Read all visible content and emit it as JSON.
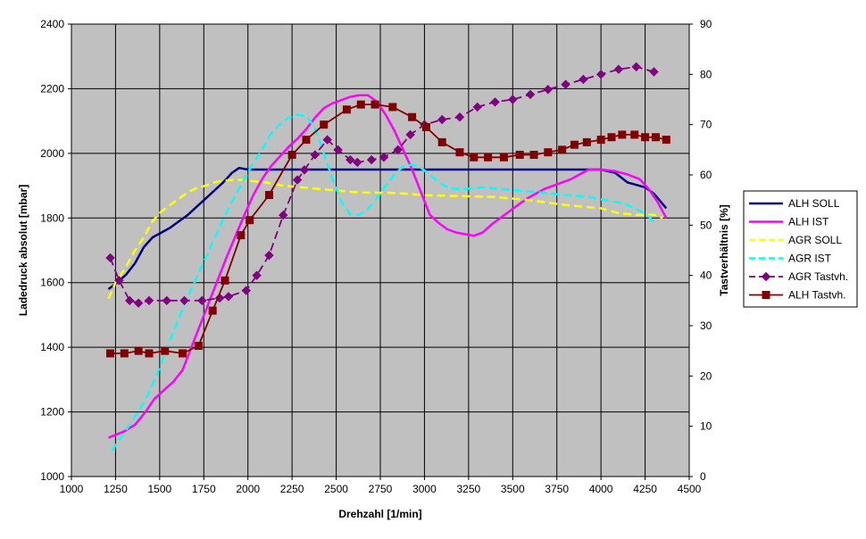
{
  "chart_data": {
    "type": "line",
    "xlabel": "Drehzahl [1/min]",
    "ylabel": "Ladedruck absolut [mbar]",
    "y2label": "Tastverhältnis [%]",
    "xlim": [
      1000,
      4500
    ],
    "ylim": [
      1000,
      2400
    ],
    "y2lim": [
      0,
      90
    ],
    "xticks": [
      "1000",
      "1250",
      "1500",
      "1750",
      "2000",
      "2250",
      "2500",
      "2750",
      "3000",
      "3250",
      "3500",
      "3750",
      "4000",
      "4250",
      "4500"
    ],
    "yticks": [
      "1000",
      "1200",
      "1400",
      "1600",
      "1800",
      "2000",
      "2200",
      "2400"
    ],
    "y2ticks": [
      "0",
      "10",
      "20",
      "30",
      "40",
      "50",
      "60",
      "70",
      "80",
      "90"
    ],
    "grid": true,
    "legend_position": "right",
    "colors": {
      "plot_background": "#c0c0c0",
      "grid": "#000000"
    },
    "series": [
      {
        "name": "ALH SOLL",
        "axis": "left",
        "color": "#000080",
        "dash": "solid",
        "marker": "none",
        "points": [
          [
            1210,
            1580
          ],
          [
            1260,
            1600
          ],
          [
            1310,
            1625
          ],
          [
            1360,
            1660
          ],
          [
            1410,
            1710
          ],
          [
            1460,
            1740
          ],
          [
            1510,
            1755
          ],
          [
            1560,
            1770
          ],
          [
            1610,
            1790
          ],
          [
            1660,
            1810
          ],
          [
            1710,
            1835
          ],
          [
            1760,
            1860
          ],
          [
            1810,
            1885
          ],
          [
            1860,
            1910
          ],
          [
            1910,
            1940
          ],
          [
            1950,
            1955
          ],
          [
            2000,
            1950
          ],
          [
            2100,
            1950
          ],
          [
            2500,
            1950
          ],
          [
            3000,
            1950
          ],
          [
            3500,
            1950
          ],
          [
            4000,
            1950
          ],
          [
            4080,
            1940
          ],
          [
            4150,
            1910
          ],
          [
            4250,
            1895
          ],
          [
            4300,
            1875
          ],
          [
            4370,
            1830
          ]
        ]
      },
      {
        "name": "ALH IST",
        "axis": "left",
        "color": "#ff00ff",
        "dash": "solid",
        "marker": "none",
        "points": [
          [
            1210,
            1120
          ],
          [
            1300,
            1140
          ],
          [
            1360,
            1160
          ],
          [
            1420,
            1200
          ],
          [
            1470,
            1240
          ],
          [
            1530,
            1270
          ],
          [
            1580,
            1295
          ],
          [
            1630,
            1330
          ],
          [
            1680,
            1400
          ],
          [
            1730,
            1470
          ],
          [
            1780,
            1540
          ],
          [
            1830,
            1610
          ],
          [
            1880,
            1680
          ],
          [
            1930,
            1745
          ],
          [
            1980,
            1810
          ],
          [
            2030,
            1870
          ],
          [
            2080,
            1920
          ],
          [
            2130,
            1960
          ],
          [
            2180,
            1990
          ],
          [
            2230,
            2020
          ],
          [
            2280,
            2045
          ],
          [
            2330,
            2075
          ],
          [
            2380,
            2110
          ],
          [
            2430,
            2140
          ],
          [
            2480,
            2155
          ],
          [
            2530,
            2165
          ],
          [
            2580,
            2175
          ],
          [
            2630,
            2180
          ],
          [
            2680,
            2180
          ],
          [
            2730,
            2160
          ],
          [
            2780,
            2120
          ],
          [
            2830,
            2070
          ],
          [
            2880,
            2010
          ],
          [
            2930,
            1950
          ],
          [
            2980,
            1880
          ],
          [
            3030,
            1810
          ],
          [
            3080,
            1785
          ],
          [
            3130,
            1765
          ],
          [
            3180,
            1755
          ],
          [
            3230,
            1750
          ],
          [
            3280,
            1745
          ],
          [
            3330,
            1755
          ],
          [
            3380,
            1780
          ],
          [
            3430,
            1800
          ],
          [
            3480,
            1820
          ],
          [
            3530,
            1840
          ],
          [
            3580,
            1860
          ],
          [
            3630,
            1875
          ],
          [
            3680,
            1890
          ],
          [
            3730,
            1900
          ],
          [
            3780,
            1910
          ],
          [
            3830,
            1920
          ],
          [
            3880,
            1935
          ],
          [
            3930,
            1950
          ],
          [
            4000,
            1950
          ],
          [
            4080,
            1945
          ],
          [
            4150,
            1935
          ],
          [
            4220,
            1920
          ],
          [
            4270,
            1890
          ],
          [
            4320,
            1850
          ],
          [
            4370,
            1800
          ]
        ]
      },
      {
        "name": "AGR SOLL",
        "axis": "left",
        "color": "#ffff00",
        "dash": "dashed",
        "marker": "none",
        "points": [
          [
            1210,
            1550
          ],
          [
            1250,
            1600
          ],
          [
            1310,
            1650
          ],
          [
            1360,
            1700
          ],
          [
            1410,
            1740
          ],
          [
            1460,
            1790
          ],
          [
            1510,
            1820
          ],
          [
            1560,
            1840
          ],
          [
            1610,
            1860
          ],
          [
            1660,
            1880
          ],
          [
            1710,
            1893
          ],
          [
            1760,
            1900
          ],
          [
            1810,
            1910
          ],
          [
            1860,
            1915
          ],
          [
            1910,
            1918
          ],
          [
            1960,
            1918
          ],
          [
            2010,
            1915
          ],
          [
            2100,
            1910
          ],
          [
            2200,
            1900
          ],
          [
            2300,
            1895
          ],
          [
            2400,
            1890
          ],
          [
            2500,
            1885
          ],
          [
            2600,
            1880
          ],
          [
            2700,
            1878
          ],
          [
            2800,
            1878
          ],
          [
            2900,
            1875
          ],
          [
            3000,
            1870
          ],
          [
            3200,
            1868
          ],
          [
            3400,
            1865
          ],
          [
            3600,
            1855
          ],
          [
            3800,
            1840
          ],
          [
            4000,
            1830
          ],
          [
            4100,
            1815
          ],
          [
            4200,
            1810
          ],
          [
            4300,
            1810
          ],
          [
            4350,
            1800
          ]
        ]
      },
      {
        "name": "AGR IST",
        "axis": "left",
        "color": "#00ffff",
        "dash": "dashed",
        "marker": "none",
        "points": [
          [
            1230,
            1080
          ],
          [
            1280,
            1120
          ],
          [
            1330,
            1160
          ],
          [
            1380,
            1200
          ],
          [
            1430,
            1250
          ],
          [
            1480,
            1310
          ],
          [
            1530,
            1380
          ],
          [
            1580,
            1450
          ],
          [
            1630,
            1520
          ],
          [
            1680,
            1580
          ],
          [
            1730,
            1640
          ],
          [
            1780,
            1700
          ],
          [
            1830,
            1760
          ],
          [
            1880,
            1820
          ],
          [
            1930,
            1870
          ],
          [
            1980,
            1920
          ],
          [
            2030,
            1970
          ],
          [
            2080,
            2010
          ],
          [
            2130,
            2060
          ],
          [
            2180,
            2090
          ],
          [
            2230,
            2110
          ],
          [
            2280,
            2120
          ],
          [
            2330,
            2115
          ],
          [
            2380,
            2080
          ],
          [
            2430,
            2000
          ],
          [
            2480,
            1920
          ],
          [
            2530,
            1850
          ],
          [
            2580,
            1810
          ],
          [
            2630,
            1810
          ],
          [
            2680,
            1830
          ],
          [
            2730,
            1860
          ],
          [
            2780,
            1900
          ],
          [
            2830,
            1935
          ],
          [
            2880,
            1960
          ],
          [
            2930,
            1965
          ],
          [
            2980,
            1955
          ],
          [
            3030,
            1935
          ],
          [
            3080,
            1910
          ],
          [
            3130,
            1895
          ],
          [
            3180,
            1890
          ],
          [
            3230,
            1890
          ],
          [
            3330,
            1895
          ],
          [
            3430,
            1890
          ],
          [
            3530,
            1885
          ],
          [
            3630,
            1880
          ],
          [
            3730,
            1875
          ],
          [
            3830,
            1870
          ],
          [
            3930,
            1865
          ],
          [
            4030,
            1855
          ],
          [
            4130,
            1845
          ],
          [
            4230,
            1820
          ],
          [
            4280,
            1800
          ],
          [
            4300,
            1780
          ]
        ]
      },
      {
        "name": "AGR Tastvh.",
        "axis": "right",
        "color": "#800080",
        "dash": "dashed",
        "marker": "diamond",
        "points": [
          [
            1220,
            43.5
          ],
          [
            1270,
            39
          ],
          [
            1330,
            35
          ],
          [
            1380,
            34.5
          ],
          [
            1440,
            35
          ],
          [
            1540,
            35
          ],
          [
            1640,
            35
          ],
          [
            1740,
            35
          ],
          [
            1840,
            35.5
          ],
          [
            1890,
            35.8
          ],
          [
            1990,
            37
          ],
          [
            2050,
            40
          ],
          [
            2120,
            44
          ],
          [
            2200,
            52
          ],
          [
            2280,
            59
          ],
          [
            2320,
            61
          ],
          [
            2380,
            64
          ],
          [
            2450,
            67
          ],
          [
            2510,
            65
          ],
          [
            2580,
            63
          ],
          [
            2620,
            62.5
          ],
          [
            2700,
            63
          ],
          [
            2770,
            63.5
          ],
          [
            2850,
            65
          ],
          [
            2920,
            68
          ],
          [
            3000,
            70
          ],
          [
            3100,
            71
          ],
          [
            3200,
            71.5
          ],
          [
            3300,
            73.5
          ],
          [
            3400,
            74.5
          ],
          [
            3500,
            75
          ],
          [
            3600,
            76
          ],
          [
            3700,
            77
          ],
          [
            3800,
            78
          ],
          [
            3900,
            79
          ],
          [
            4000,
            80
          ],
          [
            4100,
            81
          ],
          [
            4200,
            81.5
          ],
          [
            4300,
            80.5
          ]
        ]
      },
      {
        "name": "ALH Tastvh.",
        "axis": "right",
        "color": "#800000",
        "dash": "solid",
        "marker": "square",
        "points": [
          [
            1220,
            24.5
          ],
          [
            1300,
            24.5
          ],
          [
            1380,
            25
          ],
          [
            1440,
            24.5
          ],
          [
            1530,
            25
          ],
          [
            1630,
            24.5
          ],
          [
            1720,
            26
          ],
          [
            1800,
            33
          ],
          [
            1870,
            39
          ],
          [
            1960,
            48
          ],
          [
            2010,
            51
          ],
          [
            2120,
            56
          ],
          [
            2250,
            64
          ],
          [
            2330,
            67
          ],
          [
            2430,
            70
          ],
          [
            2560,
            73
          ],
          [
            2640,
            74
          ],
          [
            2720,
            74
          ],
          [
            2820,
            73.5
          ],
          [
            2930,
            71.5
          ],
          [
            3010,
            69.5
          ],
          [
            3100,
            66.5
          ],
          [
            3200,
            64.5
          ],
          [
            3280,
            63.5
          ],
          [
            3360,
            63.5
          ],
          [
            3450,
            63.5
          ],
          [
            3540,
            64
          ],
          [
            3620,
            64
          ],
          [
            3700,
            64.5
          ],
          [
            3780,
            65
          ],
          [
            3850,
            66
          ],
          [
            3920,
            66.5
          ],
          [
            4000,
            67
          ],
          [
            4060,
            67.5
          ],
          [
            4120,
            68
          ],
          [
            4190,
            68
          ],
          [
            4250,
            67.5
          ],
          [
            4310,
            67.5
          ],
          [
            4370,
            67
          ]
        ]
      }
    ]
  }
}
